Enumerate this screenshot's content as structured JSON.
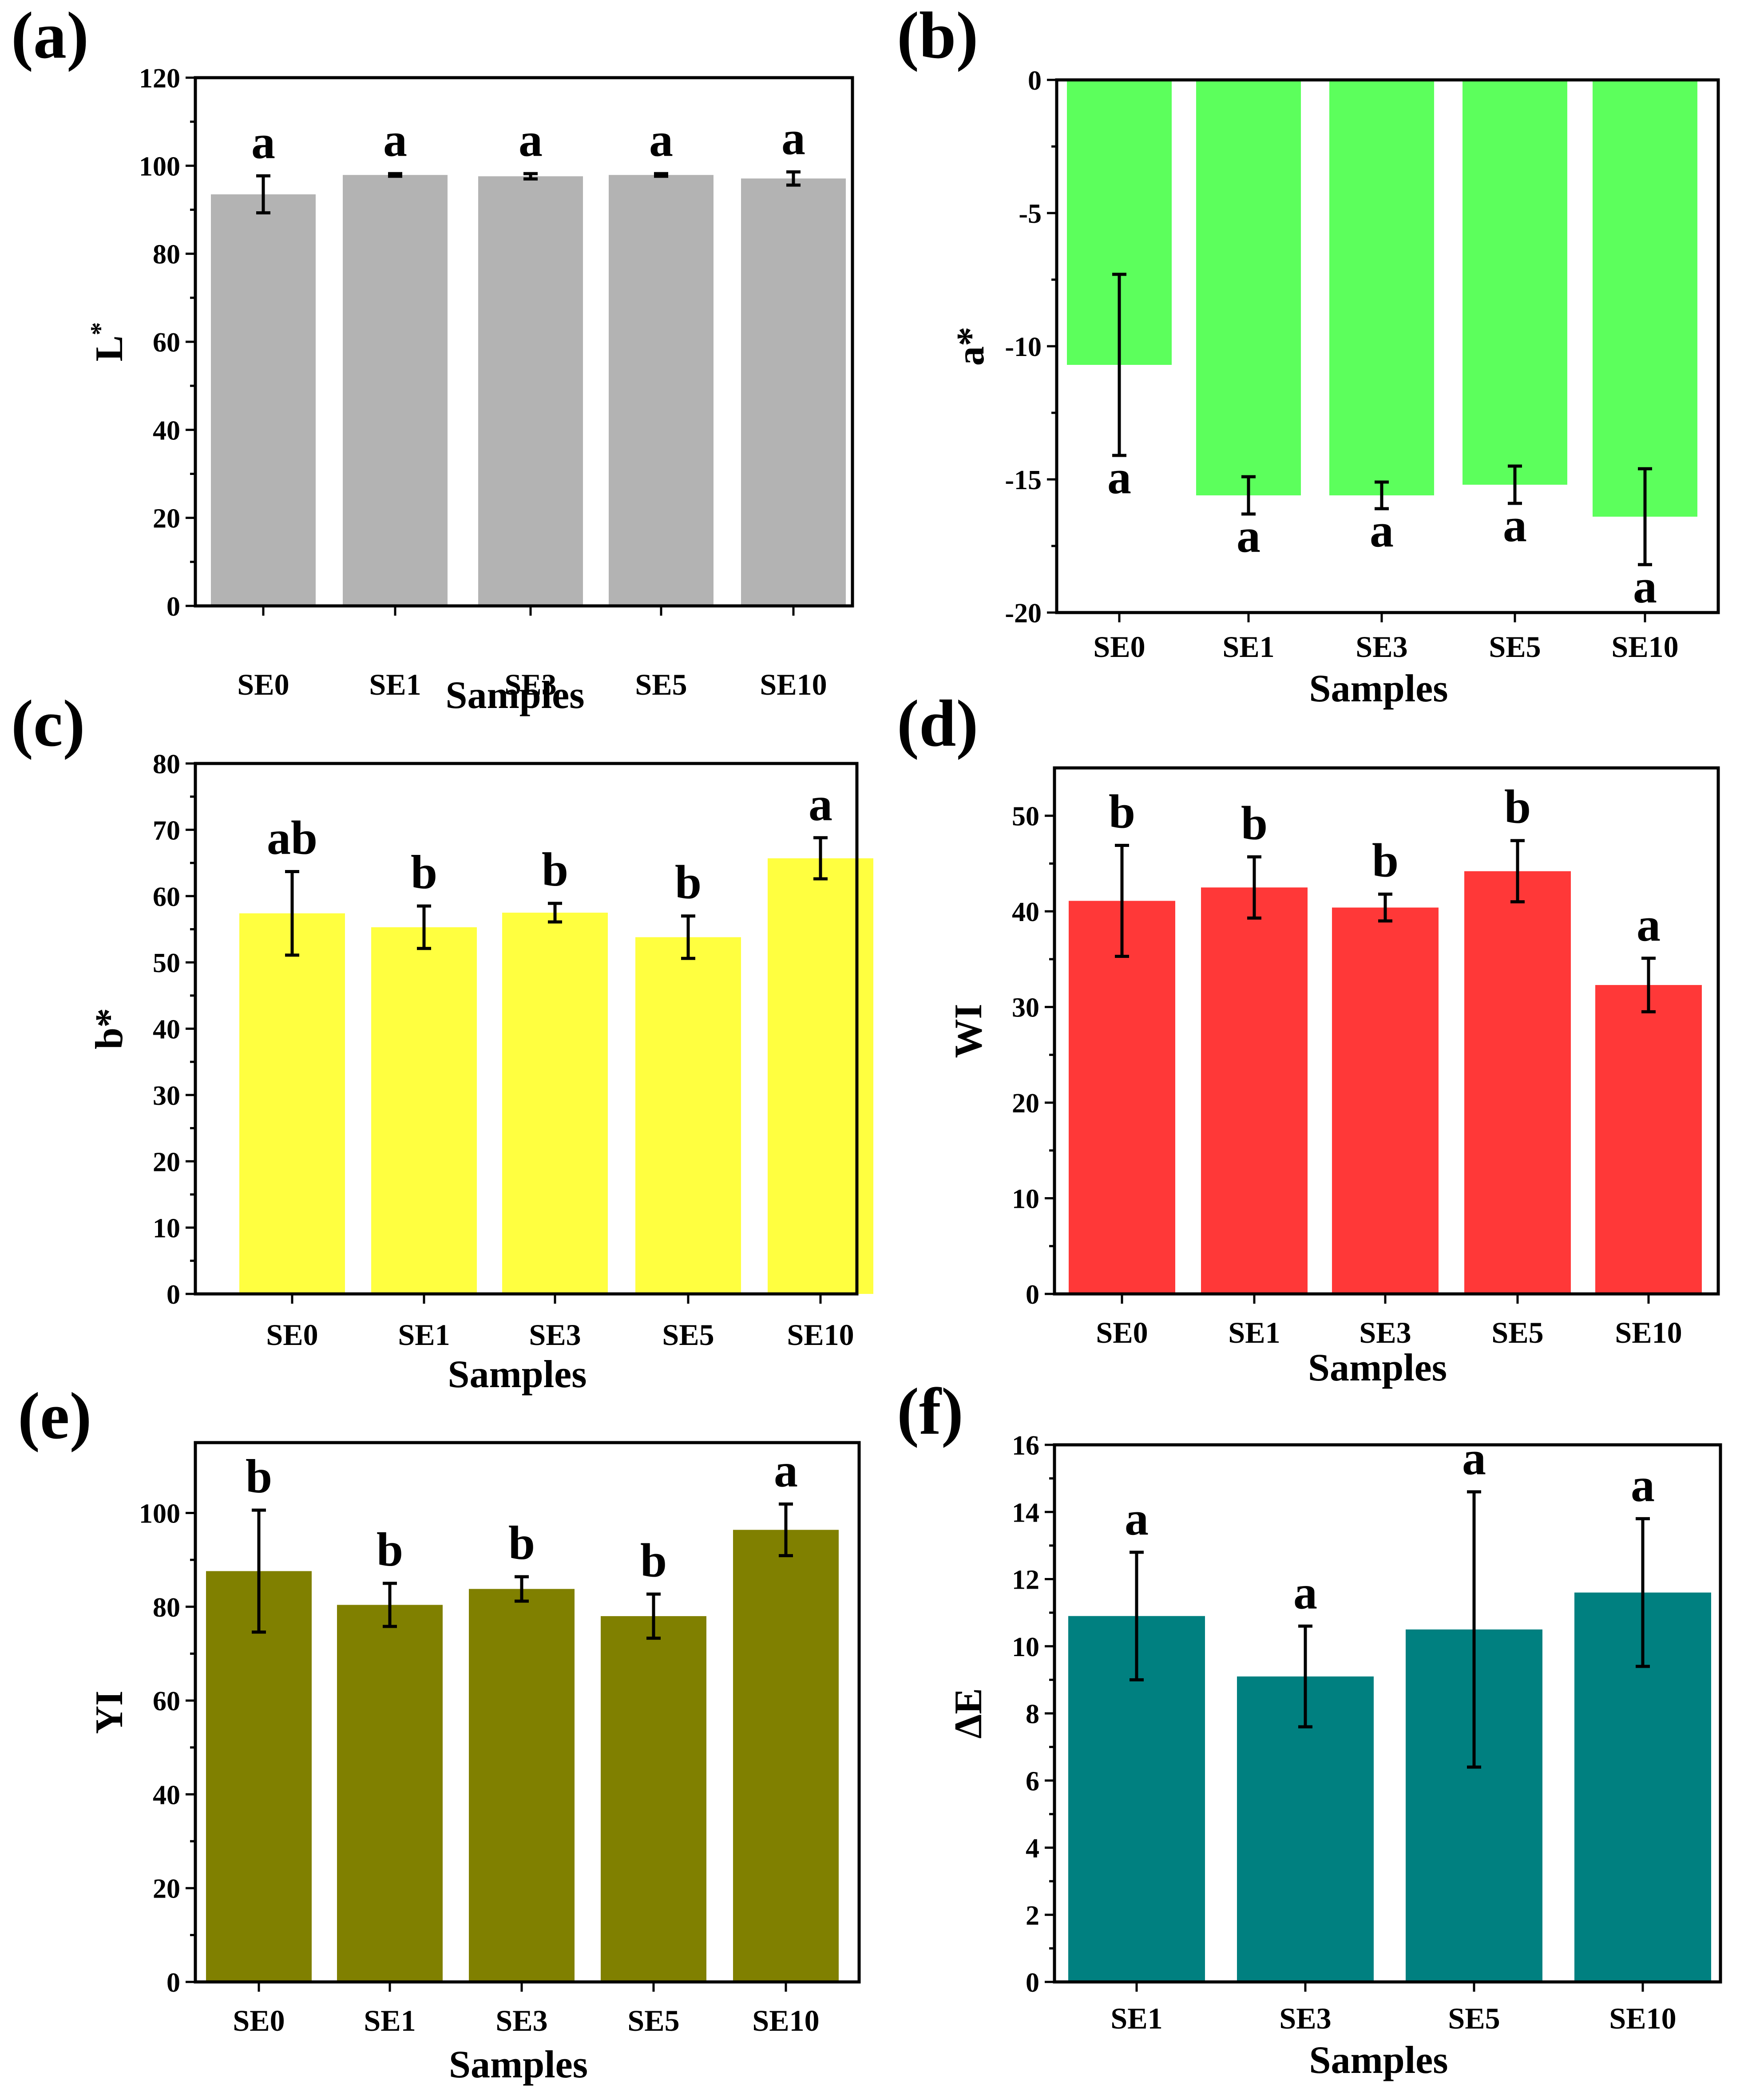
{
  "chart_data": [
    {
      "type": "bar",
      "panel_label": "(a)",
      "color": "#B3B3B3",
      "categories": [
        "SE0",
        "SE1",
        "SE3",
        "SE5",
        "SE10"
      ],
      "values": [
        93.5,
        97.9,
        97.6,
        97.9,
        97.1
      ],
      "errors": [
        4.2,
        0.3,
        0.6,
        0.3,
        1.5
      ],
      "letters": [
        "a",
        "a",
        "a",
        "a",
        "a"
      ],
      "xlabel": "Samples",
      "ylabel": "L",
      "ylabel_sup": "*",
      "ylim": [
        0,
        120
      ],
      "yticks": [
        0,
        20,
        40,
        60,
        80,
        100,
        120
      ]
    },
    {
      "type": "bar",
      "panel_label": "(b)",
      "color": "#5CFF5C",
      "categories": [
        "SE0",
        "SE1",
        "SE3",
        "SE5",
        "SE10"
      ],
      "values": [
        -10.7,
        -15.6,
        -15.6,
        -15.2,
        -16.4
      ],
      "errors": [
        3.4,
        0.7,
        0.5,
        0.7,
        1.8
      ],
      "letters": [
        "a",
        "a",
        "a",
        "a",
        "a"
      ],
      "xlabel": "Samples",
      "ylabel": "a*",
      "ylim": [
        -20,
        0
      ],
      "yticks": [
        -20,
        -15,
        -10,
        -5,
        0
      ]
    },
    {
      "type": "bar",
      "panel_label": "(c)",
      "color": "#FFFF40",
      "categories": [
        "SE0",
        "SE1",
        "SE3",
        "SE5",
        "SE10"
      ],
      "values": [
        57.4,
        55.3,
        57.5,
        53.8,
        65.7
      ],
      "errors": [
        6.3,
        3.2,
        1.4,
        3.2,
        3.1
      ],
      "letters": [
        "ab",
        "b",
        "b",
        "b",
        "a"
      ],
      "xlabel": "Samples",
      "ylabel": "b*",
      "ylim": [
        0,
        80
      ],
      "yticks": [
        0,
        10,
        20,
        30,
        40,
        50,
        60,
        70,
        80
      ]
    },
    {
      "type": "bar",
      "panel_label": "(d)",
      "color": "#FF3838",
      "categories": [
        "SE0",
        "SE1",
        "SE3",
        "SE5",
        "SE10"
      ],
      "values": [
        41.1,
        42.5,
        40.4,
        44.2,
        32.3
      ],
      "errors": [
        5.8,
        3.2,
        1.4,
        3.2,
        2.8
      ],
      "letters": [
        "b",
        "b",
        "b",
        "b",
        "a"
      ],
      "xlabel": "Samples",
      "ylabel": "WI",
      "ylim": [
        0,
        55
      ],
      "yticks": [
        0,
        10,
        20,
        30,
        40,
        50
      ]
    },
    {
      "type": "bar",
      "panel_label": "(e)",
      "color": "#808000",
      "categories": [
        "SE0",
        "SE1",
        "SE3",
        "SE5",
        "SE10"
      ],
      "values": [
        87.6,
        80.4,
        83.8,
        78.0,
        96.4
      ],
      "errors": [
        13.0,
        4.6,
        2.6,
        4.7,
        5.5
      ],
      "letters": [
        "b",
        "b",
        "b",
        "b",
        "a"
      ],
      "xlabel": "Samples",
      "ylabel": "YI",
      "ylim": [
        0,
        115
      ],
      "yticks": [
        0,
        20,
        40,
        60,
        80,
        100
      ]
    },
    {
      "type": "bar",
      "panel_label": "(f)",
      "color": "#008080",
      "categories": [
        "SE1",
        "SE3",
        "SE5",
        "SE10"
      ],
      "values": [
        10.9,
        9.1,
        10.5,
        11.6
      ],
      "errors": [
        1.9,
        1.5,
        4.1,
        2.2
      ],
      "letters": [
        "a",
        "a",
        "a",
        "a"
      ],
      "xlabel": "Samples",
      "ylabel": "ΔE",
      "ylim": [
        0,
        16
      ],
      "yticks": [
        0,
        2,
        4,
        6,
        8,
        10,
        12,
        14,
        16
      ]
    }
  ]
}
